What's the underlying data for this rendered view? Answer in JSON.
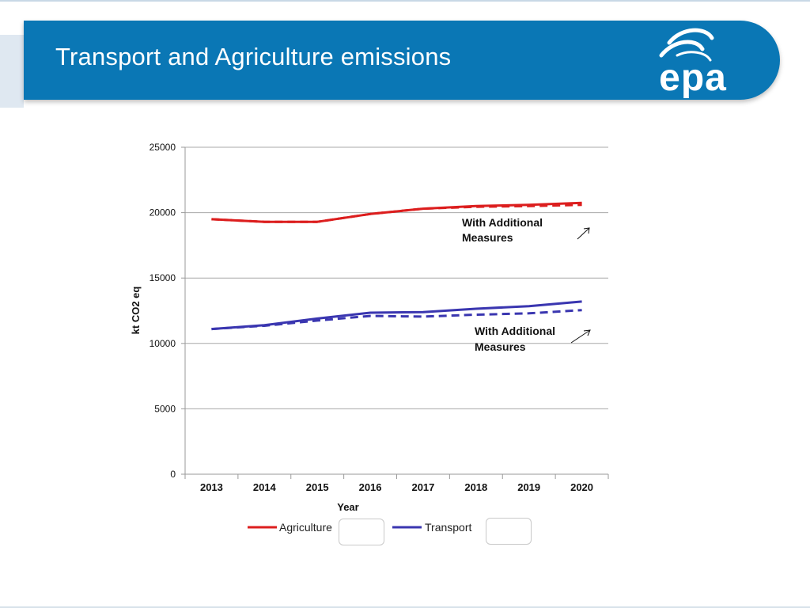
{
  "header": {
    "title": "Transport and Agriculture emissions",
    "logo_text": "epa"
  },
  "colors": {
    "header_bg": "#0a77b5",
    "agriculture": "#dc1e1e",
    "transport": "#3a36b0",
    "grid": "#a8a8a8"
  },
  "chart_data": {
    "type": "line",
    "title": "",
    "xlabel": "Year",
    "ylabel": "kt CO2 eq",
    "ylim": [
      0,
      25000
    ],
    "yticks": [
      0,
      5000,
      10000,
      15000,
      20000,
      25000
    ],
    "grid": true,
    "categories": [
      "2013",
      "2014",
      "2015",
      "2016",
      "2017",
      "2018",
      "2019",
      "2020"
    ],
    "series": [
      {
        "name": "Agriculture",
        "key": "agriculture",
        "style": "solid",
        "values": [
          19500,
          19300,
          19300,
          19900,
          20300,
          20500,
          20600,
          20750
        ]
      },
      {
        "name": "Agriculture - With Additional Measures",
        "key": "agriculture",
        "style": "dashed",
        "values": [
          19500,
          19300,
          19300,
          19900,
          20300,
          20450,
          20500,
          20600
        ]
      },
      {
        "name": "Transport",
        "key": "transport",
        "style": "solid",
        "values": [
          11100,
          11400,
          11900,
          12350,
          12400,
          12650,
          12850,
          13200
        ]
      },
      {
        "name": "Transport - With Additional Measures",
        "key": "transport",
        "style": "dashed",
        "values": [
          11100,
          11350,
          11750,
          12100,
          12050,
          12200,
          12300,
          12550
        ]
      }
    ],
    "legend": [
      "Agriculture",
      "Transport"
    ],
    "legend_position": "bottom",
    "annotations": [
      {
        "target": "agriculture",
        "line1": "With Additional",
        "line2": "Measures"
      },
      {
        "target": "transport",
        "line1": "With Additional",
        "line2": "Measures"
      }
    ]
  }
}
